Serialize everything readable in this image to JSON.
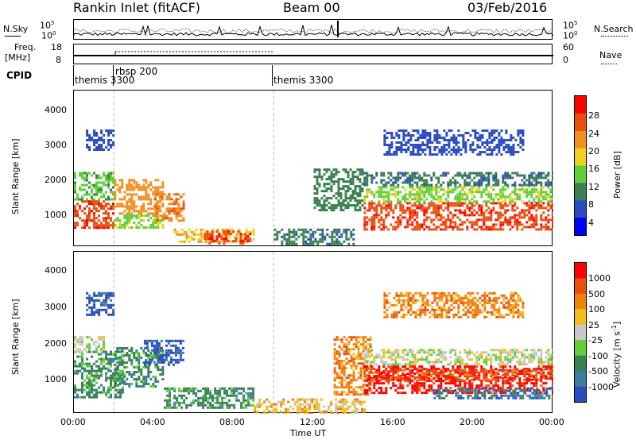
{
  "header": {
    "station": "Rankin Inlet (fitACF)",
    "beam": "Beam 00",
    "date": "03/Feb/2016"
  },
  "noise_panel": {
    "left_label": "N.Sky",
    "right_label": "N.Search",
    "left_ticks": [
      "10^5",
      "10^0"
    ],
    "right_ticks": [
      "10^5",
      "10^0"
    ]
  },
  "freq_panel": {
    "left_label_line1": "Freq.",
    "left_label_line2": "[MHz]",
    "right_label": "Nave",
    "left_ticks": [
      "18",
      "8"
    ],
    "right_ticks": [
      "60",
      "0"
    ]
  },
  "cpid_panel": {
    "label": "CPID",
    "segments": [
      {
        "start": 0.0,
        "end": 2.0,
        "text": "themis 3300"
      },
      {
        "start": 1.85,
        "end": 10.0,
        "text": "rbsp 200"
      },
      {
        "start": 10.0,
        "end": 24.0,
        "text": "themis 3300"
      }
    ]
  },
  "time_axis": {
    "ticks": [
      "00:00",
      "04:00",
      "08:00",
      "12:00",
      "16:00",
      "20:00",
      "00:00"
    ],
    "label": "Time UT"
  },
  "power_panel": {
    "ylabel": "Slant Range [km]",
    "yticks": [
      "1000",
      "2000",
      "3000",
      "4000"
    ],
    "colorbar_label": "Power [dB]",
    "colorbar_ticks": [
      "4",
      "8",
      "12",
      "16",
      "20",
      "24",
      "28"
    ],
    "colors": [
      "#0000ff",
      "#2a4cc0",
      "#3b8050",
      "#5fcf3a",
      "#f0d020",
      "#f09020",
      "#e85010",
      "#ff0000"
    ]
  },
  "velocity_panel": {
    "ylabel": "Slant Range [km]",
    "yticks": [
      "1000",
      "2000",
      "3000",
      "4000"
    ],
    "colorbar_label": "Velocity [m s",
    "colorbar_label_sup": "-1",
    "colorbar_label_end": "]",
    "colorbar_ticks": [
      "1000",
      "500",
      "100",
      "25",
      "-25",
      "-100",
      "-500",
      "-1000"
    ],
    "colors": [
      "#2a4cc0",
      "#3b7fa0",
      "#3b8050",
      "#5fcf3a",
      "#c8c8c8",
      "#f0c020",
      "#f08010",
      "#e85010",
      "#ff0000"
    ]
  },
  "chart_data": [
    {
      "type": "heatmap",
      "title": "Power",
      "xlabel": "Time UT",
      "ylabel": "Slant Range [km]",
      "xlim_hours": [
        0,
        24
      ],
      "ylim_km": [
        180,
        4600
      ],
      "zlabel": "Power [dB]",
      "zlim": [
        0,
        30
      ],
      "regions": [
        {
          "t0": 0.0,
          "t1": 2.0,
          "r0": 700,
          "r1": 1500,
          "level": 26
        },
        {
          "t0": 0.0,
          "t1": 2.0,
          "r0": 1500,
          "r1": 2300,
          "level": 12
        },
        {
          "t0": 0.6,
          "t1": 2.0,
          "r0": 2900,
          "r1": 3500,
          "level": 6
        },
        {
          "t0": 2.0,
          "t1": 4.5,
          "r0": 1100,
          "r1": 2100,
          "level": 20
        },
        {
          "t0": 2.0,
          "t1": 4.5,
          "r0": 700,
          "r1": 1100,
          "level": 14
        },
        {
          "t0": 4.0,
          "t1": 5.5,
          "r0": 900,
          "r1": 1700,
          "level": 22
        },
        {
          "t0": 5.0,
          "t1": 9.0,
          "r0": 350,
          "r1": 700,
          "level": 18
        },
        {
          "t0": 6.5,
          "t1": 8.8,
          "r0": 300,
          "r1": 650,
          "level": 26
        },
        {
          "t0": 10.0,
          "t1": 14.0,
          "r0": 250,
          "r1": 700,
          "level": 8
        },
        {
          "t0": 12.0,
          "t1": 14.5,
          "r0": 1200,
          "r1": 2400,
          "level": 10
        },
        {
          "t0": 14.5,
          "t1": 24.0,
          "r0": 650,
          "r1": 1450,
          "level": 26
        },
        {
          "t0": 14.5,
          "t1": 24.0,
          "r0": 1450,
          "r1": 1900,
          "level": 14
        },
        {
          "t0": 14.5,
          "t1": 24.0,
          "r0": 1900,
          "r1": 2300,
          "level": 8
        },
        {
          "t0": 15.5,
          "t1": 22.5,
          "r0": 2800,
          "r1": 3500,
          "level": 6
        }
      ]
    },
    {
      "type": "heatmap",
      "title": "Velocity",
      "xlabel": "Time UT",
      "ylabel": "Slant Range [km]",
      "xlim_hours": [
        0,
        24
      ],
      "ylim_km": [
        180,
        4600
      ],
      "zlabel": "Velocity [m s-1]",
      "zlim": [
        -1000,
        1000
      ],
      "regions": [
        {
          "t0": 0.0,
          "t1": 2.5,
          "r0": 600,
          "r1": 1900,
          "level": 2
        },
        {
          "t0": 0.0,
          "t1": 1.5,
          "r0": 1900,
          "r1": 2300,
          "level": 4
        },
        {
          "t0": 0.6,
          "t1": 2.0,
          "r0": 2900,
          "r1": 3500,
          "level": 0
        },
        {
          "t0": 2.0,
          "t1": 4.5,
          "r0": 900,
          "r1": 2000,
          "level": 2
        },
        {
          "t0": 3.5,
          "t1": 5.5,
          "r0": 1500,
          "r1": 2200,
          "level": 0
        },
        {
          "t0": 4.5,
          "t1": 9.0,
          "r0": 350,
          "r1": 900,
          "level": 2
        },
        {
          "t0": 9.0,
          "t1": 14.5,
          "r0": 200,
          "r1": 600,
          "level": 5
        },
        {
          "t0": 13.0,
          "t1": 14.8,
          "r0": 700,
          "r1": 2300,
          "level": 6
        },
        {
          "t0": 14.5,
          "t1": 24.0,
          "r0": 750,
          "r1": 1500,
          "level": 8
        },
        {
          "t0": 14.5,
          "t1": 24.0,
          "r0": 1100,
          "r1": 1400,
          "level": 7
        },
        {
          "t0": 14.5,
          "t1": 24.0,
          "r0": 1500,
          "r1": 1950,
          "level": 4
        },
        {
          "t0": 18.0,
          "t1": 24.0,
          "r0": 600,
          "r1": 900,
          "level": 1
        },
        {
          "t0": 15.5,
          "t1": 22.5,
          "r0": 2800,
          "r1": 3500,
          "level": 6
        }
      ]
    }
  ]
}
